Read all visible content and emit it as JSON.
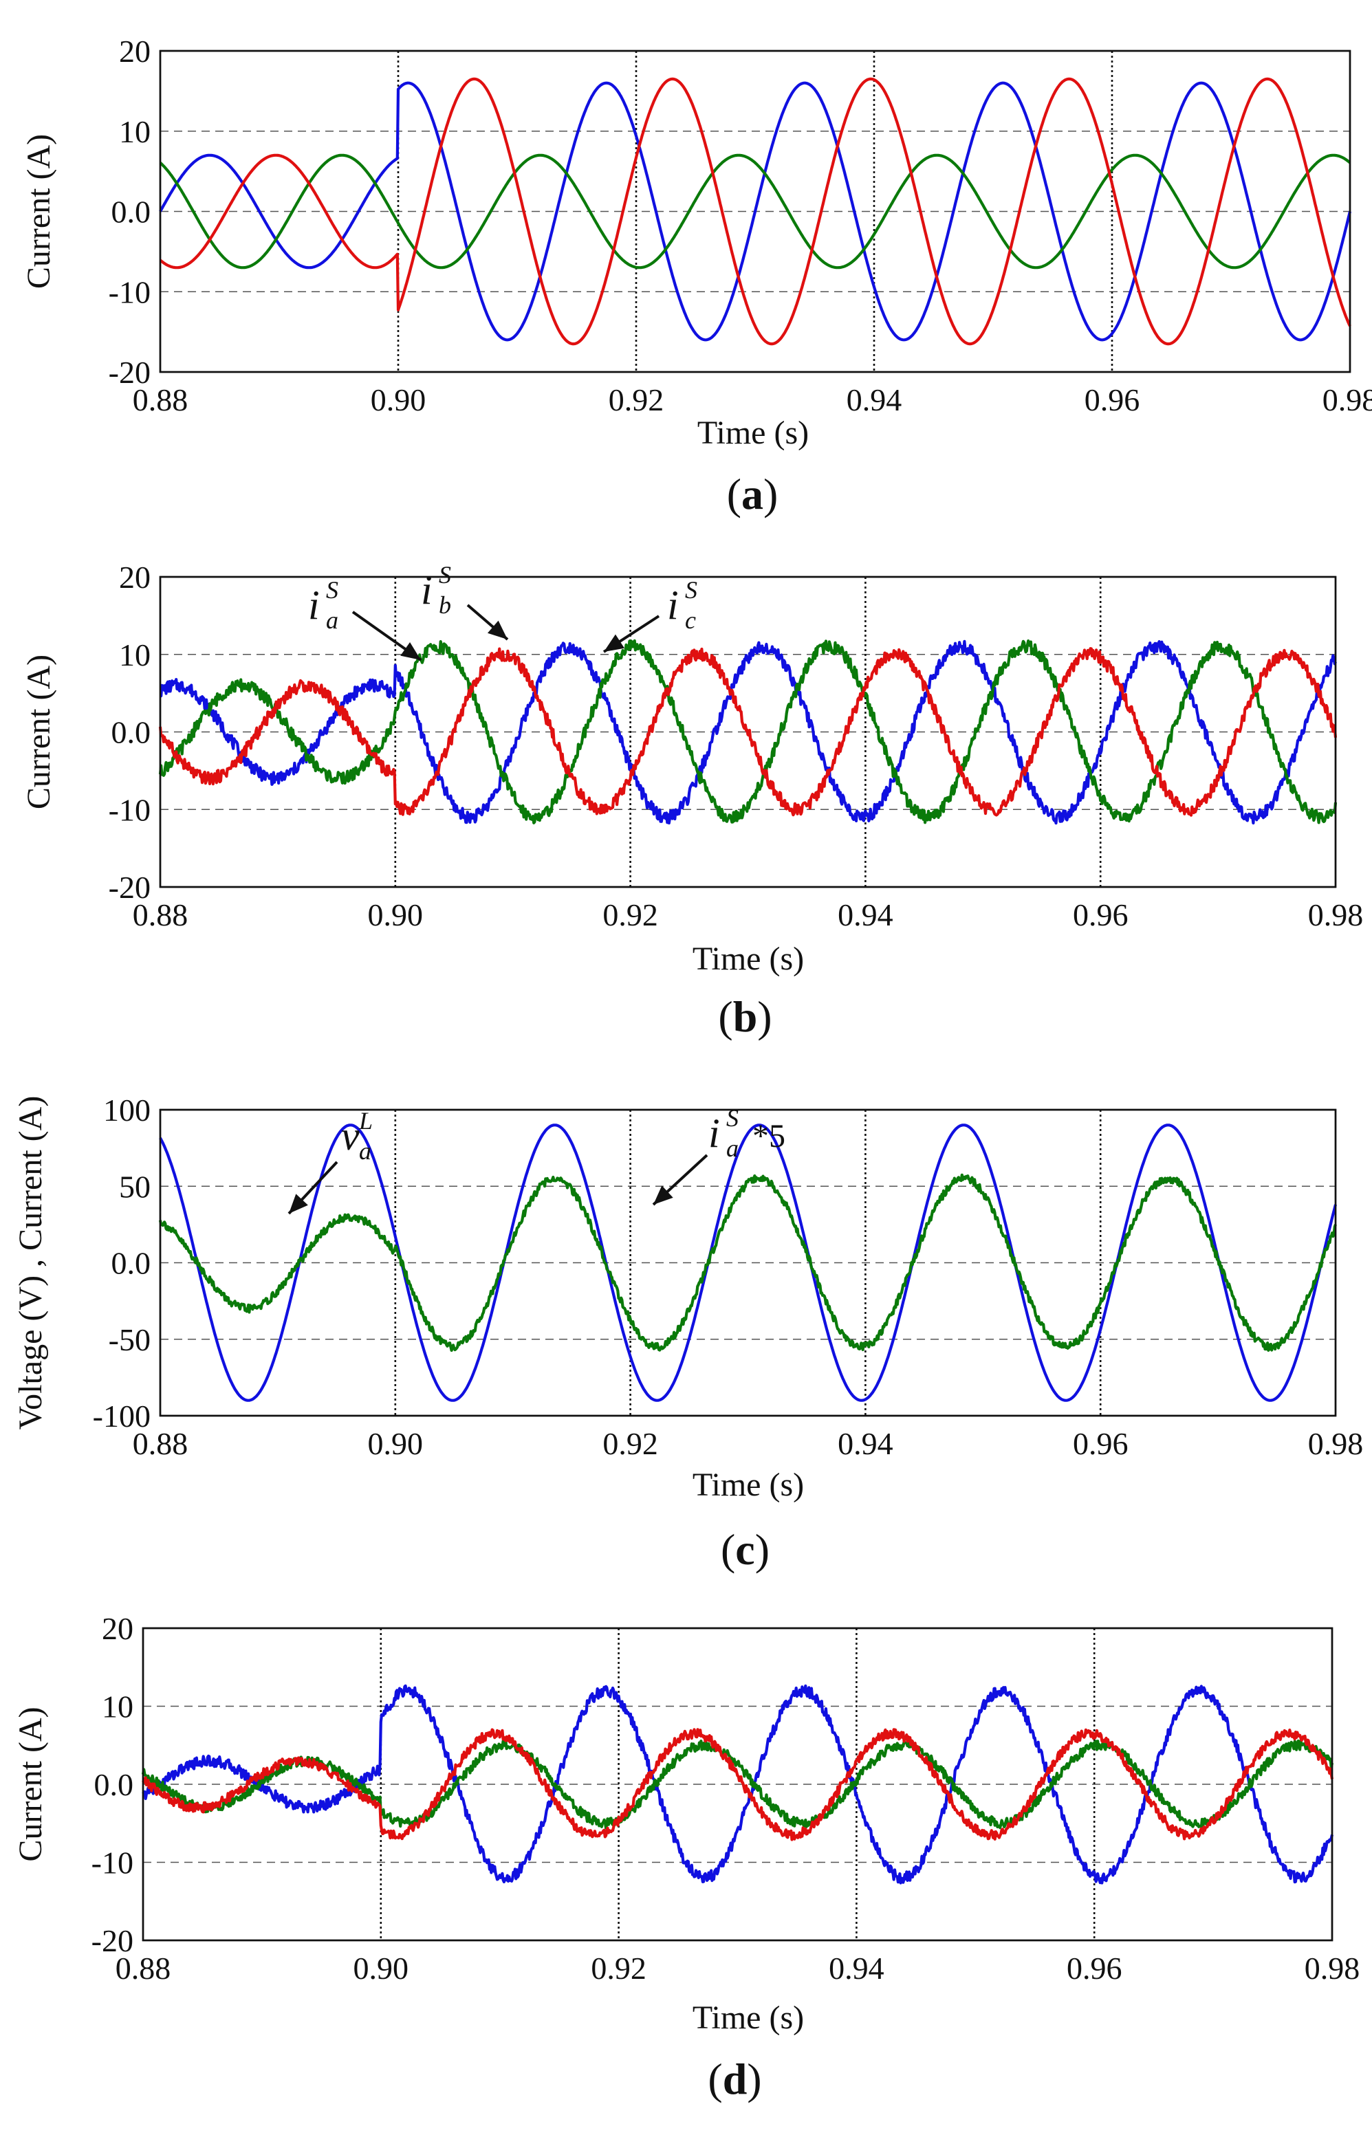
{
  "chart_data": [
    {
      "id": "a",
      "type": "line",
      "panel_label": "a",
      "xlabel": "Time (s)",
      "ylabel": "Current (A)",
      "xlim": [
        0.88,
        0.98
      ],
      "ylim": [
        -20,
        20
      ],
      "xticks": [
        "0.88",
        "0.90",
        "0.92",
        "0.94",
        "0.96",
        "0.98"
      ],
      "yticks": [
        "20",
        "10",
        "0.0",
        "-10",
        "-20"
      ],
      "event_time": 0.9,
      "series": [
        {
          "name": "blue",
          "color": "#1010e0",
          "amp_before": 7,
          "amp_after": 16,
          "freq": 60,
          "phase_deg": 0,
          "ripple": 0.0,
          "offset": 0
        },
        {
          "name": "green",
          "color": "#0a7a0a",
          "amp_before": 7,
          "amp_after": 7,
          "freq": 60,
          "phase_deg": 120,
          "ripple": 0.0,
          "offset": 0
        },
        {
          "name": "red",
          "color": "#e01010",
          "amp_before": 7,
          "amp_after": 16.5,
          "freq": 60,
          "phase_deg": -120,
          "ripple": 0.0,
          "offset": 0
        }
      ],
      "annotations": []
    },
    {
      "id": "b",
      "type": "line",
      "panel_label": "b",
      "xlabel": "Time (s)",
      "ylabel": "Current (A)",
      "xlim": [
        0.88,
        0.98
      ],
      "ylim": [
        -20,
        20
      ],
      "xticks": [
        "0.88",
        "0.90",
        "0.92",
        "0.94",
        "0.96",
        "0.98"
      ],
      "yticks": [
        "20",
        "10",
        "0.0",
        "-10",
        "-20"
      ],
      "event_time": 0.9,
      "series": [
        {
          "name": "i_a^S",
          "color": "#1010e0",
          "amp_before": 6,
          "amp_after": 11,
          "freq": 60,
          "phase_deg": 60,
          "ripple": 0.8,
          "offset": 0
        },
        {
          "name": "i_b^S",
          "color": "#0a7a0a",
          "amp_before": 6,
          "amp_after": 11,
          "freq": 60,
          "phase_deg": -60,
          "ripple": 0.8,
          "offset": 0
        },
        {
          "name": "i_c^S",
          "color": "#e01010",
          "amp_before": 6,
          "amp_after": 10,
          "freq": 60,
          "phase_deg": 180,
          "ripple": 0.8,
          "offset": 0
        }
      ],
      "annotations": [
        {
          "main": "i",
          "sub": "a",
          "sup": "S"
        },
        {
          "main": "i",
          "sub": "b",
          "sup": "S"
        },
        {
          "main": "i",
          "sub": "c",
          "sup": "S"
        }
      ]
    },
    {
      "id": "c",
      "type": "line",
      "panel_label": "c",
      "xlabel": "Time (s)",
      "ylabel": "Voltage (V) , Current (A)",
      "xlim": [
        0.88,
        0.98
      ],
      "ylim": [
        -100,
        100
      ],
      "xticks": [
        "0.88",
        "0.90",
        "0.92",
        "0.94",
        "0.96",
        "0.98"
      ],
      "yticks": [
        "100",
        "50",
        "0.0",
        "-50",
        "-100"
      ],
      "event_time": 0.9,
      "series": [
        {
          "name": "v_a^L",
          "color": "#1010e0",
          "amp_before": 90,
          "amp_after": 90,
          "freq": 57.5,
          "phase_deg": 115,
          "ripple": 0.0,
          "offset": 0
        },
        {
          "name": "i_a^S*5",
          "color": "#0a7a0a",
          "amp_before": 30,
          "amp_after": 55,
          "freq": 57.5,
          "phase_deg": 115,
          "ripple": 2.5,
          "offset": 0
        }
      ],
      "annotations": [
        {
          "main": "v",
          "sub": "a",
          "sup": "L"
        },
        {
          "main": "i",
          "sub": "a",
          "sup": "S",
          "suffix": "*5"
        }
      ]
    },
    {
      "id": "d",
      "type": "line",
      "panel_label": "d",
      "xlabel": "Time (s)",
      "ylabel": "Current (A)",
      "xlim": [
        0.88,
        0.98
      ],
      "ylim": [
        -20,
        20
      ],
      "xticks": [
        "0.88",
        "0.90",
        "0.92",
        "0.94",
        "0.96",
        "0.98"
      ],
      "yticks": [
        "20",
        "10",
        "0.0",
        "-10",
        "-20"
      ],
      "event_time": 0.9,
      "series": [
        {
          "name": "blue",
          "color": "#1010e0",
          "amp_before": 3,
          "amp_after": 12,
          "freq": 60,
          "phase_deg": -30,
          "ripple": 0.7,
          "offset": 0
        },
        {
          "name": "green",
          "color": "#0a7a0a",
          "amp_before": 3,
          "amp_after": 5,
          "freq": 60,
          "phase_deg": 150,
          "ripple": 0.6,
          "offset": 0
        },
        {
          "name": "red",
          "color": "#e01010",
          "amp_before": 3,
          "amp_after": 6.5,
          "freq": 60,
          "phase_deg": 170,
          "ripple": 0.6,
          "offset": 0
        }
      ],
      "annotations": []
    }
  ]
}
